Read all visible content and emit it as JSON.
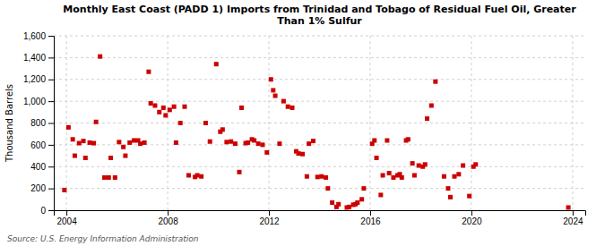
{
  "chart_data": {
    "type": "scatter",
    "title": "Monthly East Coast (PADD 1) Imports from Trinidad and Tobago of Residual Fuel Oil, Greater\nThan 1% Sulfur",
    "ylabel": "Thousand Barrels",
    "source": "Source: U.S. Energy Information Administration",
    "color": "#cc0000",
    "marker": "square",
    "grid": true,
    "xlim": [
      2003.5,
      2024.5
    ],
    "xticks": [
      2004,
      2008,
      2012,
      2016,
      2020,
      2024
    ],
    "ylim": [
      0,
      1600
    ],
    "yticks": [
      0,
      200,
      400,
      600,
      800,
      {
        "value": 1000,
        "label": "1,000"
      },
      {
        "value": 1200,
        "label": "1,200"
      },
      {
        "value": 1400,
        "label": "1,400"
      },
      {
        "value": 1600,
        "label": "1,600"
      }
    ],
    "x": [
      2003.92,
      2004.08,
      2004.25,
      2004.33,
      2004.5,
      2004.67,
      2004.75,
      2004.92,
      2005.08,
      2005.17,
      2005.33,
      2005.5,
      2005.67,
      2005.75,
      2005.92,
      2006.08,
      2006.25,
      2006.33,
      2006.5,
      2006.67,
      2006.83,
      2006.92,
      2007.08,
      2007.25,
      2007.33,
      2007.5,
      2007.67,
      2007.83,
      2007.92,
      2008.08,
      2008.25,
      2008.33,
      2008.5,
      2008.67,
      2008.83,
      2009.08,
      2009.17,
      2009.33,
      2009.5,
      2009.67,
      2009.92,
      2010.08,
      2010.17,
      2010.33,
      2010.5,
      2010.67,
      2010.83,
      2010.92,
      2011.08,
      2011.17,
      2011.33,
      2011.42,
      2011.58,
      2011.75,
      2011.92,
      2012.08,
      2012.17,
      2012.25,
      2012.42,
      2012.58,
      2012.75,
      2012.92,
      2013.08,
      2013.17,
      2013.33,
      2013.5,
      2013.58,
      2013.75,
      2013.92,
      2014.08,
      2014.25,
      2014.33,
      2014.5,
      2014.67,
      2014.75,
      2015.08,
      2015.17,
      2015.33,
      2015.42,
      2015.5,
      2015.67,
      2015.75,
      2016.08,
      2016.17,
      2016.25,
      2016.42,
      2016.5,
      2016.67,
      2016.75,
      2016.92,
      2017.08,
      2017.17,
      2017.25,
      2017.42,
      2017.5,
      2017.67,
      2017.75,
      2017.92,
      2018.08,
      2018.17,
      2018.25,
      2018.42,
      2018.58,
      2018.92,
      2019.08,
      2019.17,
      2019.33,
      2019.5,
      2019.67,
      2019.92,
      2020.08,
      2020.17,
      2023.83
    ],
    "values": [
      185,
      760,
      650,
      500,
      615,
      635,
      480,
      620,
      615,
      810,
      1410,
      300,
      300,
      480,
      300,
      625,
      580,
      500,
      620,
      640,
      640,
      610,
      620,
      1270,
      980,
      960,
      900,
      940,
      870,
      920,
      950,
      620,
      800,
      950,
      320,
      305,
      320,
      310,
      800,
      630,
      1340,
      720,
      740,
      625,
      630,
      610,
      350,
      940,
      615,
      620,
      650,
      640,
      610,
      600,
      530,
      1200,
      1100,
      1050,
      610,
      1000,
      950,
      940,
      540,
      520,
      515,
      310,
      610,
      635,
      305,
      310,
      300,
      200,
      70,
      30,
      55,
      25,
      30,
      50,
      55,
      70,
      100,
      200,
      610,
      640,
      480,
      140,
      320,
      640,
      340,
      300,
      320,
      330,
      300,
      640,
      650,
      430,
      320,
      410,
      400,
      420,
      840,
      960,
      1180,
      310,
      200,
      120,
      310,
      330,
      410,
      130,
      400,
      420,
      25
    ]
  }
}
